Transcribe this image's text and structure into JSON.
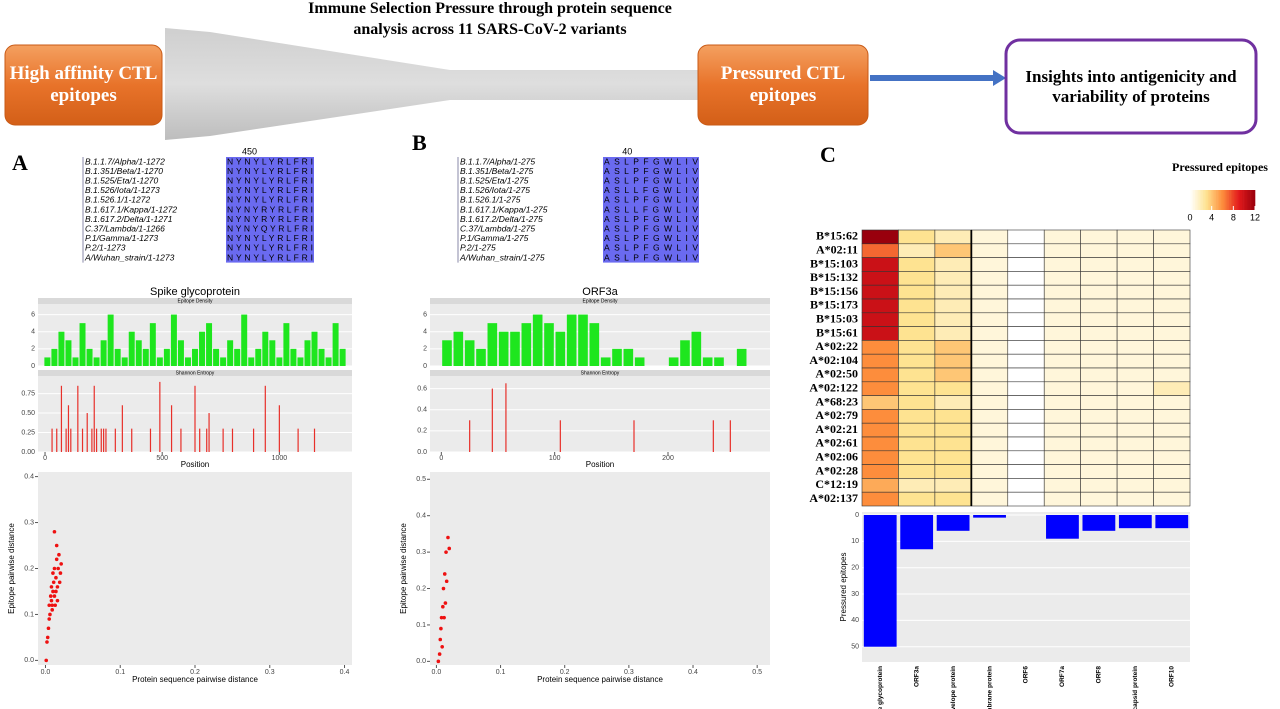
{
  "flow": {
    "title": "Immune Selection Pressure through protein sequence analysis across 11 SARS-CoV-2 variants",
    "input": "High affinity CTL epitopes",
    "output": "Pressured CTL epitopes",
    "result": "Insights into antigenicity and variability of proteins"
  },
  "panels": [
    {
      "label": "A",
      "title": "Spike glycoprotein",
      "alignment": {
        "tick": 450,
        "names": [
          "B.1.1.7/Alpha/1-1272",
          "B.1.351/Beta/1-1270",
          "B.1.525/Eta/1-1270",
          "B.1.526/Iota/1-1273",
          "B.1.526.1/1-1272",
          "B.1.617.1/Kappa/1-1272",
          "B.1.617.2/Delta/1-1271",
          "C.37/Lambda/1-1266",
          "P.1/Gamma/1-1273",
          "P.2/1-1273",
          "A/Wuhan_strain/1-1273"
        ],
        "sequences": [
          "NYNYLYRLFRI",
          "NYNYLYRLFRI",
          "NYNYLYRLFRI",
          "NYNYLYRLFRI",
          "NYNYLYRLFRI",
          "NYNYRYRLFRI",
          "NYNYRYRLFRI",
          "NYNYQYRLFRI",
          "NYNYLYRLFRI",
          "NYNYLYRLFRI",
          "NYNYLYRLFRI"
        ]
      },
      "density": {
        "strip": "Epitope Density",
        "positions": [
          10,
          40,
          70,
          100,
          130,
          160,
          190,
          220,
          250,
          280,
          310,
          340,
          370,
          400,
          430,
          460,
          490,
          520,
          550,
          580,
          610,
          640,
          670,
          700,
          730,
          760,
          790,
          820,
          850,
          880,
          910,
          940,
          970,
          1000,
          1030,
          1060,
          1090,
          1120,
          1150,
          1180,
          1210,
          1240,
          1270
        ],
        "values": [
          1,
          2,
          4,
          3,
          1,
          5,
          2,
          1,
          3,
          6,
          2,
          1,
          4,
          3,
          2,
          5,
          1,
          2,
          6,
          3,
          1,
          2,
          4,
          5,
          2,
          1,
          3,
          2,
          6,
          1,
          2,
          4,
          3,
          1,
          5,
          2,
          1,
          3,
          4,
          2,
          1,
          5,
          2
        ],
        "ylim": [
          0,
          7
        ],
        "yticks": [
          0,
          2,
          4,
          6
        ],
        "color": "#1ee61e"
      },
      "entropy": {
        "strip": "Shannon Entropy",
        "positions": [
          30,
          50,
          70,
          90,
          100,
          110,
          140,
          160,
          180,
          200,
          210,
          220,
          240,
          250,
          260,
          300,
          330,
          370,
          450,
          490,
          540,
          580,
          640,
          660,
          690,
          700,
          760,
          800,
          890,
          940,
          1000,
          1080,
          1150
        ],
        "values": [
          0.3,
          0.3,
          0.85,
          0.3,
          0.6,
          0.3,
          0.85,
          0.3,
          0.5,
          0.3,
          0.85,
          0.3,
          0.3,
          0.3,
          0.3,
          0.3,
          0.6,
          0.3,
          0.3,
          0.9,
          0.6,
          0.3,
          0.85,
          0.3,
          0.3,
          0.5,
          0.3,
          0.3,
          0.3,
          0.85,
          0.6,
          0.3,
          0.3
        ],
        "ylim": [
          0,
          0.95
        ],
        "yticks": [
          {
            "value": 0,
            "label": "0.00"
          },
          0.25,
          {
            "value": 0.5,
            "label": "0.50"
          },
          0.75
        ],
        "color": "#e8302a"
      },
      "xlim": [
        -30,
        1310
      ],
      "xticks": [
        0,
        500,
        1000
      ],
      "xlabel": "Position",
      "scatter": {
        "x": [
          0.001,
          0.002,
          0.003,
          0.004,
          0.005,
          0.005,
          0.006,
          0.007,
          0.008,
          0.008,
          0.009,
          0.01,
          0.01,
          0.011,
          0.012,
          0.012,
          0.013,
          0.014,
          0.014,
          0.015,
          0.016,
          0.016,
          0.017,
          0.018,
          0.019,
          0.02,
          0.021,
          0.015,
          0.012,
          0.009
        ],
        "y": [
          0,
          0.04,
          0.05,
          0.07,
          0.09,
          0.12,
          0.1,
          0.14,
          0.13,
          0.16,
          0.12,
          0.15,
          0.19,
          0.17,
          0.14,
          0.2,
          0.12,
          0.18,
          0.15,
          0.22,
          0.16,
          0.13,
          0.2,
          0.23,
          0.17,
          0.19,
          0.21,
          0.25,
          0.28,
          0.11
        ],
        "xlim": [
          -0.01,
          0.41
        ],
        "xticks": [
          {
            "value": 0,
            "label": "0.0"
          },
          0.1,
          0.2,
          0.3,
          0.4
        ],
        "ylim": [
          -0.01,
          0.41
        ],
        "yticks": [
          {
            "value": 0,
            "label": "0.0"
          },
          0.1,
          0.2,
          0.3,
          0.4
        ],
        "xlabel": "Protein sequence pairwise distance",
        "ylabel": "Epitope pairwise distance",
        "color": "#ee1111"
      }
    },
    {
      "label": "B",
      "title": "ORF3a",
      "alignment": {
        "tick": 40,
        "names": [
          "B.1.1.7/Alpha/1-275",
          "B.1.351/Beta/1-275",
          "B.1.525/Eta/1-275",
          "B.1.526/Iota/1-275",
          "B.1.526.1/1-275",
          "B.1.617.1/Kappa/1-275",
          "B.1.617.2/Delta/1-275",
          "C.37/Lambda/1-275",
          "P.1/Gamma/1-275",
          "P.2/1-275",
          "A/Wuhan_strain/1-275"
        ],
        "sequences": [
          "ASLPFGWLIV",
          "ASLPFGWLIV",
          "ASLPFGWLIV",
          "ASLLFGWLIV",
          "ASLPFGWLIV",
          "ASLLFGWLIV",
          "ASLPFGWLIV",
          "ASLPFGWLIV",
          "ASLPFGWLIV",
          "ASLPFGWLIV",
          "ASLPFGWLIV"
        ]
      },
      "density": {
        "strip": "Epitope Density",
        "positions": [
          5,
          15,
          25,
          35,
          45,
          55,
          65,
          75,
          85,
          95,
          105,
          115,
          125,
          135,
          145,
          155,
          165,
          175,
          185,
          195,
          205,
          215,
          225,
          235,
          245,
          255,
          265
        ],
        "values": [
          3,
          4,
          3,
          2,
          5,
          4,
          4,
          5,
          6,
          5,
          4,
          6,
          6,
          5,
          1,
          2,
          2,
          1,
          0,
          0,
          1,
          3,
          4,
          1,
          1,
          0,
          2
        ],
        "ylim": [
          0,
          7
        ],
        "yticks": [
          0,
          2,
          4,
          6
        ],
        "color": "#1ee61e"
      },
      "entropy": {
        "strip": "Shannon Entropy",
        "positions": [
          25,
          45,
          57,
          105,
          170,
          240,
          255
        ],
        "values": [
          0.3,
          0.6,
          0.65,
          0.3,
          0.3,
          0.3,
          0.3
        ],
        "ylim": [
          0,
          0.7
        ],
        "yticks": [
          {
            "value": 0,
            "label": "0.0"
          },
          0.2,
          0.4,
          0.6
        ],
        "color": "#e8302a"
      },
      "xlim": [
        -10,
        290
      ],
      "xticks": [
        0,
        100,
        200
      ],
      "xlabel": "Position",
      "scatter": {
        "x": [
          0.003,
          0.005,
          0.006,
          0.007,
          0.008,
          0.009,
          0.01,
          0.011,
          0.012,
          0.013,
          0.014,
          0.015,
          0.016,
          0.018,
          0.02
        ],
        "y": [
          0,
          0.02,
          0.06,
          0.09,
          0.12,
          0.04,
          0.15,
          0.2,
          0.12,
          0.24,
          0.16,
          0.3,
          0.22,
          0.34,
          0.31
        ],
        "xlim": [
          -0.01,
          0.52
        ],
        "xticks": [
          {
            "value": 0,
            "label": "0.0"
          },
          0.1,
          0.2,
          0.3,
          0.4,
          0.5
        ],
        "ylim": [
          -0.01,
          0.52
        ],
        "yticks": [
          {
            "value": 0,
            "label": "0.0"
          },
          0.1,
          0.2,
          0.3,
          0.4,
          0.5
        ],
        "xlabel": "Protein sequence pairwise distance",
        "ylabel": "Epitope pairwise distance",
        "color": "#ee1111"
      }
    }
  ],
  "heatmap": {
    "label": "C",
    "rows": [
      "B*15:62",
      "A*02:11",
      "B*15:103",
      "B*15:132",
      "B*15:156",
      "B*15:173",
      "B*15:03",
      "B*15:61",
      "A*02:22",
      "A*02:104",
      "A*02:50",
      "A*02:122",
      "A*68:23",
      "A*02:79",
      "A*02:21",
      "A*02:61",
      "A*02:06",
      "A*02:28",
      "C*12:19",
      "A*02:137"
    ],
    "columns": [
      "Spike glycoprotein",
      "ORF3a",
      "Envelope protein",
      "Membrane protein",
      "ORF6",
      "ORF7a",
      "ORF8",
      "Nucleocapsid protein",
      "ORF10"
    ],
    "values": [
      [
        12,
        3,
        2,
        1,
        0,
        1,
        1,
        1,
        1
      ],
      [
        7,
        2,
        4,
        1,
        0,
        1,
        1,
        1,
        1
      ],
      [
        10,
        3,
        2,
        1,
        0,
        1,
        1,
        1,
        1
      ],
      [
        10,
        3,
        2,
        1,
        0,
        1,
        1,
        1,
        1
      ],
      [
        10,
        3,
        2,
        1,
        0,
        1,
        1,
        1,
        1
      ],
      [
        10,
        3,
        2,
        1,
        0,
        1,
        1,
        1,
        1
      ],
      [
        10,
        3,
        2,
        1,
        0,
        1,
        1,
        1,
        1
      ],
      [
        10,
        3,
        2,
        1,
        0,
        1,
        1,
        1,
        1
      ],
      [
        6,
        3,
        4,
        1,
        0,
        1,
        1,
        1,
        1
      ],
      [
        6,
        3,
        4,
        1,
        0,
        1,
        1,
        1,
        1
      ],
      [
        6,
        3,
        4,
        1,
        0,
        1,
        1,
        1,
        1
      ],
      [
        6,
        3,
        3,
        1,
        0,
        1,
        1,
        1,
        2
      ],
      [
        4,
        3,
        2,
        1,
        0,
        1,
        1,
        1,
        1
      ],
      [
        6,
        3,
        3,
        1,
        0,
        1,
        1,
        1,
        1
      ],
      [
        6,
        3,
        3,
        1,
        0,
        1,
        1,
        1,
        1
      ],
      [
        6,
        3,
        3,
        1,
        0,
        1,
        1,
        1,
        1
      ],
      [
        6,
        3,
        3,
        1,
        0,
        1,
        1,
        1,
        1
      ],
      [
        6,
        3,
        3,
        1,
        0,
        1,
        1,
        1,
        1
      ],
      [
        5,
        2,
        2,
        1,
        0,
        1,
        1,
        1,
        1
      ],
      [
        6,
        3,
        3,
        1,
        0,
        1,
        1,
        1,
        1
      ]
    ],
    "legend": {
      "title": "Pressured epitopes",
      "lim": [
        0,
        12
      ],
      "ticks": [
        0,
        4,
        8,
        12
      ],
      "colors": [
        "#ffffff",
        "#fee391",
        "#fd8d3c",
        "#e31a1c",
        "#99000d"
      ]
    },
    "bars": {
      "values": [
        50,
        13,
        6,
        1,
        0,
        9,
        6,
        5,
        5
      ],
      "ylim": [
        0,
        52
      ],
      "yticks": [
        0,
        10,
        20,
        30,
        40,
        50
      ],
      "ylabel": "Pressured epitopes",
      "color": "#0000ff"
    }
  }
}
